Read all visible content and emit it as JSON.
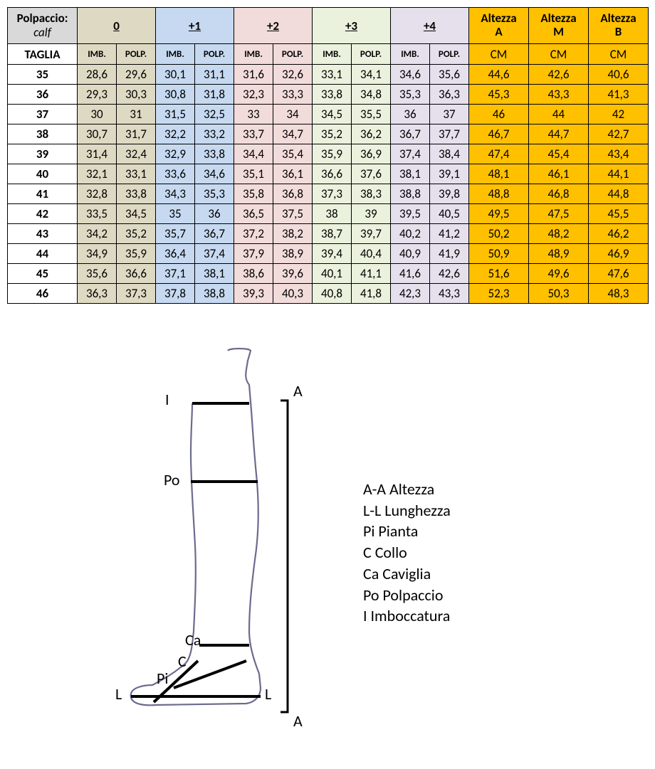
{
  "table": {
    "corner_top": "Polpaccio:",
    "corner_sub": "calf",
    "taglia_label": "TAGLIA",
    "groups": [
      {
        "label": "0",
        "bg": "#ddd9c3"
      },
      {
        "label": "+1",
        "bg": "#c6d9f0"
      },
      {
        "label": "+2",
        "bg": "#f2dbdb"
      },
      {
        "label": "+3",
        "bg": "#eaf1dd"
      },
      {
        "label": "+4",
        "bg": "#e5e0ec"
      }
    ],
    "sub_imb": "IMB.",
    "sub_polp": "POLP.",
    "alt_headers": [
      {
        "l1": "Altezza",
        "l2": "A"
      },
      {
        "l1": "Altezza",
        "l2": "M"
      },
      {
        "l1": "Altezza",
        "l2": "B"
      }
    ],
    "alt_sub": "CM",
    "alt_bg": "#ffc000",
    "rows": [
      {
        "size": "35",
        "v": [
          "28,6",
          "29,6",
          "30,1",
          "31,1",
          "31,6",
          "32,6",
          "33,1",
          "34,1",
          "34,6",
          "35,6"
        ],
        "a": [
          "44,6",
          "42,6",
          "40,6"
        ]
      },
      {
        "size": "36",
        "v": [
          "29,3",
          "30,3",
          "30,8",
          "31,8",
          "32,3",
          "33,3",
          "33,8",
          "34,8",
          "35,3",
          "36,3"
        ],
        "a": [
          "45,3",
          "43,3",
          "41,3"
        ]
      },
      {
        "size": "37",
        "v": [
          "30",
          "31",
          "31,5",
          "32,5",
          "33",
          "34",
          "34,5",
          "35,5",
          "36",
          "37"
        ],
        "a": [
          "46",
          "44",
          "42"
        ]
      },
      {
        "size": "38",
        "v": [
          "30,7",
          "31,7",
          "32,2",
          "33,2",
          "33,7",
          "34,7",
          "35,2",
          "36,2",
          "36,7",
          "37,7"
        ],
        "a": [
          "46,7",
          "44,7",
          "42,7"
        ]
      },
      {
        "size": "39",
        "v": [
          "31,4",
          "32,4",
          "32,9",
          "33,8",
          "34,4",
          "35,4",
          "35,9",
          "36,9",
          "37,4",
          "38,4"
        ],
        "a": [
          "47,4",
          "45,4",
          "43,4"
        ]
      },
      {
        "size": "40",
        "v": [
          "32,1",
          "33,1",
          "33,6",
          "34,6",
          "35,1",
          "36,1",
          "36,6",
          "37,6",
          "38,1",
          "39,1"
        ],
        "a": [
          "48,1",
          "46,1",
          "44,1"
        ]
      },
      {
        "size": "41",
        "v": [
          "32,8",
          "33,8",
          "34,3",
          "35,3",
          "35,8",
          "36,8",
          "37,3",
          "38,3",
          "38,8",
          "39,8"
        ],
        "a": [
          "48,8",
          "46,8",
          "44,8"
        ]
      },
      {
        "size": "42",
        "v": [
          "33,5",
          "34,5",
          "35",
          "36",
          "36,5",
          "37,5",
          "38",
          "39",
          "39,5",
          "40,5"
        ],
        "a": [
          "49,5",
          "47,5",
          "45,5"
        ]
      },
      {
        "size": "43",
        "v": [
          "34,2",
          "35,2",
          "35,7",
          "36,7",
          "37,2",
          "38,2",
          "38,7",
          "39,7",
          "40,2",
          "41,2"
        ],
        "a": [
          "50,2",
          "48,2",
          "46,2"
        ]
      },
      {
        "size": "44",
        "v": [
          "34,9",
          "35,9",
          "36,4",
          "37,4",
          "37,9",
          "38,9",
          "39,4",
          "40,4",
          "40,9",
          "41,9"
        ],
        "a": [
          "50,9",
          "48,9",
          "46,9"
        ]
      },
      {
        "size": "45",
        "v": [
          "35,6",
          "36,6",
          "37,1",
          "38,1",
          "38,6",
          "39,6",
          "40,1",
          "41,1",
          "41,6",
          "42,6"
        ],
        "a": [
          "51,6",
          "49,6",
          "47,6"
        ]
      },
      {
        "size": "46",
        "v": [
          "36,3",
          "37,3",
          "37,8",
          "38,8",
          "39,3",
          "40,3",
          "40,8",
          "41,8",
          "42,3",
          "43,3"
        ],
        "a": [
          "52,3",
          "50,3",
          "48,3"
        ]
      }
    ],
    "col_widths": {
      "size": 98,
      "pair": 55,
      "alt": 84
    },
    "outline_color": "#6b6b8f"
  },
  "diagram": {
    "labels": {
      "I": "I",
      "A_top": "A",
      "Po": "Po",
      "Ca": "Ca",
      "C": "C",
      "Pi": "Pi",
      "L_left": "L",
      "L_right": "L",
      "A_bottom": "A"
    },
    "legend": [
      "A-A Altezza",
      "L-L Lunghezza",
      "Pi Pianta",
      "C Collo",
      "Ca Caviglia",
      "Po Polpaccio",
      "I Imboccatura"
    ],
    "outline_color": "#6b6b8f",
    "line_color": "#000000",
    "label_fontsize": 22
  }
}
